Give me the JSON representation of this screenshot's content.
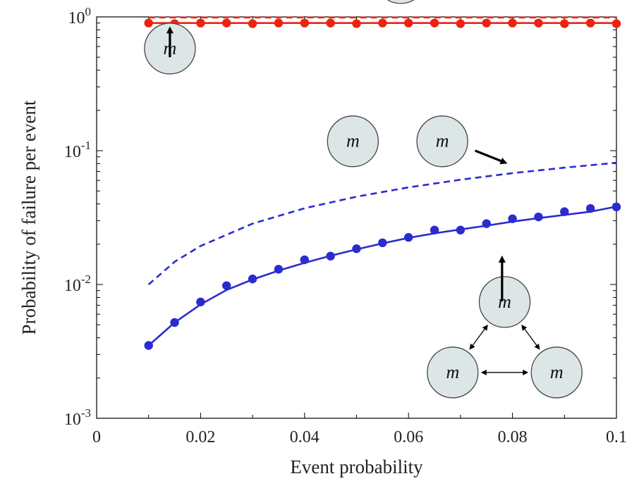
{
  "chart_data": {
    "type": "line",
    "title": "",
    "xlabel": "Event probability",
    "ylabel": "Probability of failure per event",
    "xlim": [
      0,
      0.1
    ],
    "ylim": [
      0.001,
      1
    ],
    "yscale": "log",
    "grid": false,
    "legend": "none",
    "x_ticks": [
      {
        "value": 0,
        "label": "0"
      },
      {
        "value": 0.02,
        "label": "0.02"
      },
      {
        "value": 0.04,
        "label": "0.04"
      },
      {
        "value": 0.06,
        "label": "0.06"
      },
      {
        "value": 0.08,
        "label": "0.08"
      },
      {
        "value": 0.1,
        "label": "0.1"
      }
    ],
    "y_ticks": [
      {
        "value": 1,
        "base": "10",
        "exp": "0"
      },
      {
        "value": 0.1,
        "base": "10",
        "exp": "-1"
      },
      {
        "value": 0.01,
        "base": "10",
        "exp": "-2"
      },
      {
        "value": 0.001,
        "base": "10",
        "exp": "-3"
      }
    ],
    "series": [
      {
        "color": "#ee2211",
        "style": "dashed",
        "x": [
          0.01,
          0.1
        ],
        "y": [
          0.99,
          0.99
        ]
      },
      {
        "color": "#ee2211",
        "style": "solid",
        "x": [
          0.01,
          0.1
        ],
        "y": [
          0.9,
          0.9
        ]
      },
      {
        "color": "#ee2211",
        "style": "markers",
        "x": [
          0.01,
          0.015,
          0.02,
          0.025,
          0.03,
          0.035,
          0.04,
          0.045,
          0.05,
          0.055,
          0.06,
          0.065,
          0.07,
          0.075,
          0.08,
          0.085,
          0.09,
          0.095,
          0.1
        ],
        "y": [
          0.9,
          0.89,
          0.9,
          0.9,
          0.89,
          0.9,
          0.9,
          0.9,
          0.89,
          0.9,
          0.9,
          0.9,
          0.89,
          0.9,
          0.9,
          0.9,
          0.89,
          0.9,
          0.89
        ]
      },
      {
        "color": "#2b2bd0",
        "style": "dashed",
        "x": [
          0.01,
          0.015,
          0.02,
          0.03,
          0.04,
          0.05,
          0.06,
          0.07,
          0.08,
          0.09,
          0.1
        ],
        "y": [
          0.01,
          0.0148,
          0.0194,
          0.0285,
          0.0371,
          0.0453,
          0.0532,
          0.0607,
          0.0679,
          0.0747,
          0.0813
        ]
      },
      {
        "color": "#2b2bd0",
        "style": "solid",
        "x": [
          0.01,
          0.015,
          0.02,
          0.025,
          0.03,
          0.035,
          0.04,
          0.045,
          0.05,
          0.055,
          0.06,
          0.065,
          0.07,
          0.075,
          0.08,
          0.085,
          0.09,
          0.095,
          0.1
        ],
        "y": [
          0.0035,
          0.0052,
          0.0071,
          0.0091,
          0.0109,
          0.0127,
          0.0145,
          0.0164,
          0.0183,
          0.0203,
          0.0223,
          0.0241,
          0.0258,
          0.0275,
          0.0295,
          0.0313,
          0.0331,
          0.035,
          0.0382
        ]
      },
      {
        "color": "#2b2bd0",
        "style": "markers",
        "x": [
          0.01,
          0.015,
          0.02,
          0.025,
          0.03,
          0.035,
          0.04,
          0.045,
          0.05,
          0.055,
          0.06,
          0.065,
          0.07,
          0.075,
          0.08,
          0.085,
          0.09,
          0.095,
          0.1
        ],
        "y": [
          0.0035,
          0.0052,
          0.0074,
          0.0098,
          0.011,
          0.013,
          0.0153,
          0.0163,
          0.0185,
          0.0205,
          0.0225,
          0.0255,
          0.0255,
          0.0285,
          0.031,
          0.032,
          0.035,
          0.037,
          0.038
        ]
      }
    ],
    "annotations": [
      {
        "id": "single",
        "label": "m",
        "circles": [
          [
            0.0141,
            0.58
          ]
        ],
        "arrow": {
          "from": [
            0.0141,
            0.5
          ],
          "to": [
            0.0141,
            0.8
          ]
        }
      },
      {
        "id": "triple-independent",
        "label": "m",
        "circles": [
          [
            0.0585,
            1.95
          ],
          [
            0.0493,
            0.1175
          ],
          [
            0.0665,
            0.1175
          ]
        ],
        "arrow": {
          "from": [
            0.0728,
            0.1002
          ],
          "to": [
            0.0784,
            0.082
          ]
        }
      },
      {
        "id": "triple-coupled",
        "label": "m",
        "circles": [
          [
            0.0785,
            0.0074
          ],
          [
            0.0685,
            0.0022
          ],
          [
            0.0885,
            0.0022
          ]
        ],
        "arrow": {
          "from": [
            0.078,
            0.0075
          ],
          "to": [
            0.078,
            0.0155
          ]
        }
      }
    ]
  }
}
